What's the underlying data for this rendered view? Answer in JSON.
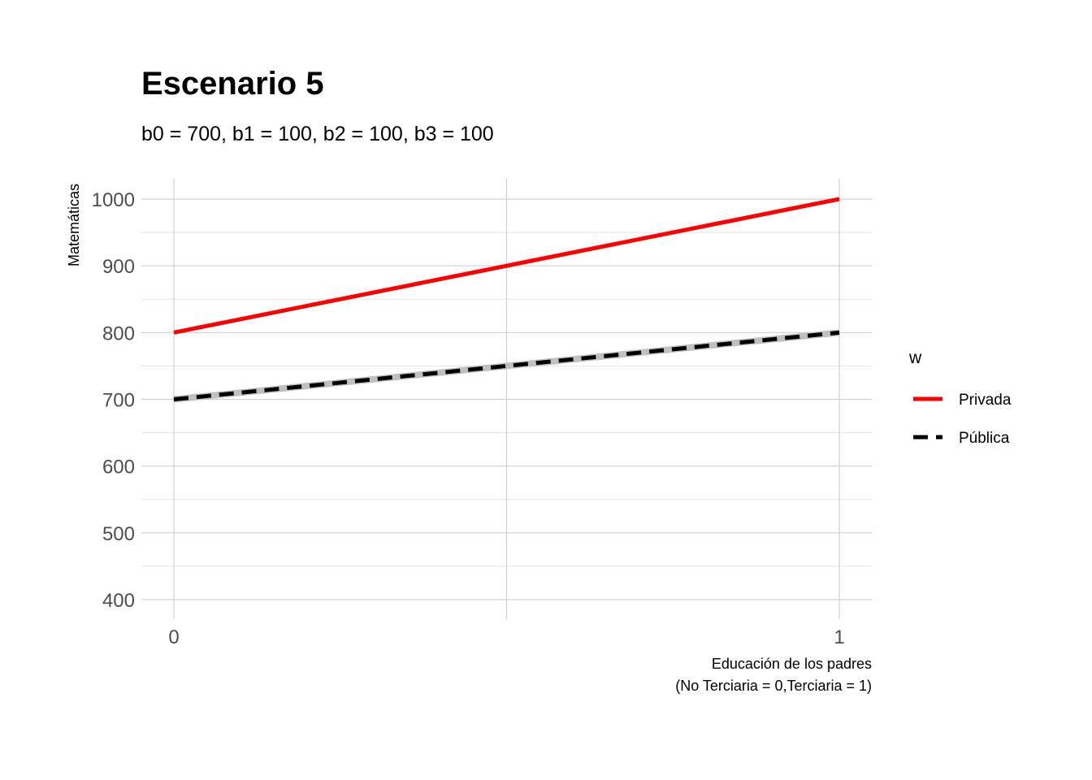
{
  "chart_data": {
    "type": "line",
    "title": "Escenario 5",
    "subtitle": "b0 = 700, b1 = 100, b2 = 100, b3 = 100",
    "xlabel_lines": [
      "Educación de los padres",
      "(No Terciaria = 0,Terciaria = 1)"
    ],
    "ylabel": "Matemáticas",
    "x": [
      0,
      1
    ],
    "x_ticks": [
      0,
      1
    ],
    "y_ticks": [
      400,
      500,
      600,
      700,
      800,
      900,
      1000
    ],
    "ylim": [
      400,
      1000
    ],
    "xlim": [
      0,
      1
    ],
    "grid": true,
    "legend": {
      "title": "w",
      "position": "right"
    },
    "series": [
      {
        "name": "Privada",
        "values": [
          800,
          1000
        ],
        "color": "#ff0000",
        "dash": "solid"
      },
      {
        "name": "Pública",
        "values": [
          700,
          800
        ],
        "color": "#000000",
        "dash": "dashed",
        "ribbon_color": "#c0c0c0"
      }
    ]
  }
}
